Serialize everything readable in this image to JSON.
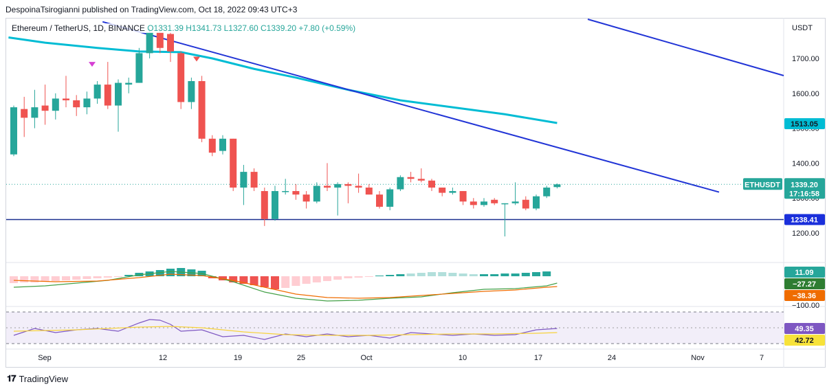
{
  "header": {
    "publisher_line": "DespoinaTsirogianni published on TradingView.com, Oct 18, 2022 09:43 UTC+3"
  },
  "legend": {
    "symbol": "Ethereum / TetherUS, 1D, BINANCE",
    "ohlc": "O1331.39  H1341.73  L1327.60  C1339.20  +7.80 (+0.59%)"
  },
  "footer": {
    "brand": "TradingView"
  },
  "colors": {
    "up": "#26a69a",
    "down": "#ef5350",
    "ma": "#00bcd4",
    "trend": "#2134d6",
    "support": "#1a2f8f",
    "macd_line": "#43a047",
    "signal_line": "#ef6c00",
    "rsi": "#7e57c2",
    "rsi_ma": "#f7d23a"
  },
  "chart_data": {
    "type": "candlestick",
    "price_unit": "USDT",
    "y_ticks": [
      "1700.00",
      "1600.00",
      "1500.00",
      "1400.00",
      "1300.00",
      "1200.00"
    ],
    "x_ticks": [
      "Sep",
      "12",
      "19",
      "25",
      "Oct",
      "10",
      "17",
      "24",
      "Nov",
      "7"
    ],
    "candles": [
      {
        "o": 1425,
        "h": 1565,
        "l": 1420,
        "c": 1560
      },
      {
        "o": 1555,
        "h": 1590,
        "l": 1475,
        "c": 1530
      },
      {
        "o": 1530,
        "h": 1610,
        "l": 1500,
        "c": 1560
      },
      {
        "o": 1565,
        "h": 1625,
        "l": 1510,
        "c": 1550
      },
      {
        "o": 1550,
        "h": 1600,
        "l": 1525,
        "c": 1585
      },
      {
        "o": 1585,
        "h": 1650,
        "l": 1560,
        "c": 1580
      },
      {
        "o": 1580,
        "h": 1595,
        "l": 1535,
        "c": 1560
      },
      {
        "o": 1560,
        "h": 1605,
        "l": 1540,
        "c": 1585
      },
      {
        "o": 1585,
        "h": 1635,
        "l": 1570,
        "c": 1625
      },
      {
        "o": 1625,
        "h": 1690,
        "l": 1555,
        "c": 1565
      },
      {
        "o": 1565,
        "h": 1640,
        "l": 1490,
        "c": 1630
      },
      {
        "o": 1625,
        "h": 1645,
        "l": 1600,
        "c": 1630
      },
      {
        "o": 1630,
        "h": 1730,
        "l": 1630,
        "c": 1715
      },
      {
        "o": 1715,
        "h": 1790,
        "l": 1700,
        "c": 1775
      },
      {
        "o": 1775,
        "h": 1790,
        "l": 1715,
        "c": 1730
      },
      {
        "o": 1770,
        "h": 1775,
        "l": 1690,
        "c": 1720
      },
      {
        "o": 1715,
        "h": 1720,
        "l": 1555,
        "c": 1575
      },
      {
        "o": 1575,
        "h": 1645,
        "l": 1555,
        "c": 1635
      },
      {
        "o": 1635,
        "h": 1650,
        "l": 1460,
        "c": 1470
      },
      {
        "o": 1470,
        "h": 1480,
        "l": 1420,
        "c": 1430
      },
      {
        "o": 1435,
        "h": 1480,
        "l": 1425,
        "c": 1470
      },
      {
        "o": 1470,
        "h": 1470,
        "l": 1320,
        "c": 1330
      },
      {
        "o": 1330,
        "h": 1395,
        "l": 1280,
        "c": 1375
      },
      {
        "o": 1375,
        "h": 1385,
        "l": 1320,
        "c": 1330
      },
      {
        "o": 1320,
        "h": 1330,
        "l": 1220,
        "c": 1240
      },
      {
        "o": 1240,
        "h": 1335,
        "l": 1235,
        "c": 1320
      },
      {
        "o": 1320,
        "h": 1355,
        "l": 1310,
        "c": 1320
      },
      {
        "o": 1320,
        "h": 1340,
        "l": 1295,
        "c": 1310
      },
      {
        "o": 1310,
        "h": 1320,
        "l": 1270,
        "c": 1290
      },
      {
        "o": 1290,
        "h": 1345,
        "l": 1285,
        "c": 1335
      },
      {
        "o": 1335,
        "h": 1400,
        "l": 1320,
        "c": 1330
      },
      {
        "o": 1330,
        "h": 1345,
        "l": 1250,
        "c": 1340
      },
      {
        "o": 1340,
        "h": 1345,
        "l": 1285,
        "c": 1335
      },
      {
        "o": 1335,
        "h": 1370,
        "l": 1315,
        "c": 1330
      },
      {
        "o": 1330,
        "h": 1340,
        "l": 1310,
        "c": 1310
      },
      {
        "o": 1310,
        "h": 1320,
        "l": 1270,
        "c": 1275
      },
      {
        "o": 1275,
        "h": 1330,
        "l": 1265,
        "c": 1325
      },
      {
        "o": 1325,
        "h": 1365,
        "l": 1320,
        "c": 1360
      },
      {
        "o": 1360,
        "h": 1375,
        "l": 1345,
        "c": 1355
      },
      {
        "o": 1355,
        "h": 1385,
        "l": 1345,
        "c": 1350
      },
      {
        "o": 1350,
        "h": 1355,
        "l": 1320,
        "c": 1330
      },
      {
        "o": 1330,
        "h": 1330,
        "l": 1305,
        "c": 1315
      },
      {
        "o": 1315,
        "h": 1330,
        "l": 1310,
        "c": 1320
      },
      {
        "o": 1320,
        "h": 1320,
        "l": 1280,
        "c": 1290
      },
      {
        "o": 1290,
        "h": 1300,
        "l": 1270,
        "c": 1280
      },
      {
        "o": 1280,
        "h": 1300,
        "l": 1275,
        "c": 1290
      },
      {
        "o": 1295,
        "h": 1300,
        "l": 1280,
        "c": 1285
      },
      {
        "o": 1285,
        "h": 1285,
        "l": 1190,
        "c": 1285
      },
      {
        "o": 1285,
        "h": 1345,
        "l": 1280,
        "c": 1290
      },
      {
        "o": 1295,
        "h": 1305,
        "l": 1265,
        "c": 1270
      },
      {
        "o": 1270,
        "h": 1310,
        "l": 1265,
        "c": 1305
      },
      {
        "o": 1305,
        "h": 1335,
        "l": 1300,
        "c": 1330
      },
      {
        "o": 1331.39,
        "h": 1341.73,
        "l": 1327.6,
        "c": 1339.2
      }
    ],
    "moving_average": {
      "value": 1513.05,
      "label": "1513.05"
    },
    "last_price": {
      "symbol": "ETHUSDT",
      "value": 1339.2,
      "label": "1339.20",
      "countdown": "17:16:58"
    },
    "support_level": {
      "value": 1238.41,
      "label": "1238.41"
    },
    "macd": {
      "labels": {
        "histogram": "11.09",
        "macd": "−27.27",
        "signal": "−38.36",
        "axis_tick": "−100.00"
      }
    },
    "rsi": {
      "labels": {
        "rsi": "49.35",
        "rsi_ma": "42.72"
      }
    }
  }
}
